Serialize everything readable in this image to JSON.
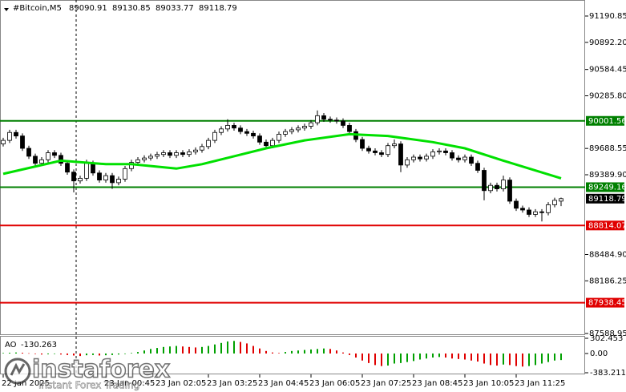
{
  "chart_data": {
    "type": "candlestick",
    "title": "#Bitcoin,M5",
    "bull_color": "#ffffff",
    "bear_color": "#000000",
    "xlim": [
      -0.5,
      90.75
    ],
    "ylim": [
      87570.8,
      91336.4
    ],
    "yticks": [
      91190.85,
      {
        "value": 90892.2,
        "label": "90892.20"
      },
      90584.45,
      {
        "value": 90285.8,
        "label": "90285.80"
      },
      89688.55,
      {
        "value": 89389.9,
        "label": "89389.90"
      },
      {
        "value": 88484.9,
        "label": "88484.90"
      },
      88186.25,
      87588.95
    ],
    "xticks": [
      {
        "value": 0,
        "label": "22 Jan 2025"
      },
      {
        "value": 16,
        "label": "23 Jan 00:45"
      },
      {
        "value": 24,
        "label": "23 Jan 02:05"
      },
      {
        "value": 32,
        "label": "23 Jan 03:25"
      },
      {
        "value": 40,
        "label": "23 Jan 04:45"
      },
      {
        "value": 48,
        "label": "23 Jan 06:05"
      },
      {
        "value": 56,
        "label": "23 Jan 07:25"
      },
      {
        "value": 64,
        "label": "23 Jan 08:45"
      },
      {
        "value": 72,
        "label": "23 Jan 10:05"
      },
      {
        "value": 80,
        "label": "23 Jan 11:25"
      }
    ],
    "open": [
      89740,
      89780,
      89870,
      89830,
      89690,
      89600,
      89520,
      89560,
      89640,
      89610,
      89520,
      89420,
      89320,
      89350,
      89520,
      89410,
      89330,
      89380,
      89300,
      89340,
      89460,
      89530,
      89560,
      89580,
      89600,
      89620,
      89640,
      89610,
      89640,
      89620,
      89650,
      89670,
      89710,
      89780,
      89870,
      89910,
      89950,
      89920,
      89880,
      89860,
      89830,
      89760,
      89720,
      89780,
      89850,
      89880,
      89900,
      89920,
      89940,
      89980,
      90060,
      90020,
      90010,
      90000,
      89950,
      89880,
      89790,
      89690,
      89660,
      89640,
      89620,
      89720,
      89740,
      89500,
      89560,
      89590,
      89570,
      89600,
      89650,
      89660,
      89640,
      89580,
      89560,
      89590,
      89520,
      89440,
      89210,
      89270,
      89230,
      89330,
      89090,
      89010,
      88990,
      88940,
      88970,
      88960,
      89050,
      89090.91
    ],
    "high": [
      89810,
      89900,
      89900,
      89860,
      89720,
      89630,
      89590,
      89670,
      89670,
      89640,
      89550,
      89450,
      89380,
      89560,
      89550,
      89440,
      89410,
      89410,
      89370,
      89490,
      89560,
      89590,
      89610,
      89630,
      89650,
      89670,
      89670,
      89670,
      89670,
      89680,
      89700,
      89740,
      89810,
      89900,
      89940,
      90020,
      89980,
      89950,
      89910,
      89890,
      89860,
      89790,
      89810,
      89880,
      89910,
      89930,
      89950,
      89970,
      90010,
      90120,
      90090,
      90050,
      90040,
      90030,
      89980,
      89910,
      89820,
      89720,
      89690,
      89670,
      89750,
      89790,
      89770,
      89590,
      89620,
      89620,
      89630,
      89680,
      89690,
      89690,
      89670,
      89610,
      89620,
      89620,
      89550,
      89470,
      89300,
      89300,
      89380,
      89360,
      89120,
      89040,
      89020,
      89000,
      89000,
      89080,
      89130,
      89130.85
    ],
    "low": [
      89710,
      89750,
      89800,
      89660,
      89570,
      89490,
      89490,
      89530,
      89580,
      89490,
      89390,
      89190,
      89290,
      89320,
      89380,
      89300,
      89300,
      89230,
      89270,
      89310,
      89430,
      89500,
      89530,
      89550,
      89570,
      89590,
      89580,
      89580,
      89590,
      89590,
      89620,
      89640,
      89680,
      89750,
      89840,
      89880,
      89890,
      89850,
      89830,
      89800,
      89730,
      89690,
      89690,
      89750,
      89820,
      89850,
      89870,
      89890,
      89910,
      89950,
      89990,
      89980,
      89970,
      89920,
      89850,
      89760,
      89660,
      89630,
      89610,
      89590,
      89590,
      89690,
      89420,
      89470,
      89530,
      89540,
      89540,
      89570,
      89620,
      89610,
      89550,
      89530,
      89530,
      89490,
      89410,
      89100,
      89180,
      89200,
      89200,
      89060,
      88980,
      88960,
      88910,
      88910,
      88860,
      88930,
      89020,
      89033.77
    ],
    "close": [
      89780,
      89870,
      89830,
      89690,
      89600,
      89520,
      89560,
      89640,
      89610,
      89520,
      89420,
      89320,
      89350,
      89520,
      89410,
      89330,
      89380,
      89300,
      89340,
      89460,
      89530,
      89560,
      89580,
      89600,
      89620,
      89640,
      89610,
      89640,
      89620,
      89650,
      89670,
      89710,
      89780,
      89870,
      89910,
      89950,
      89920,
      89880,
      89860,
      89830,
      89760,
      89720,
      89780,
      89850,
      89880,
      89900,
      89920,
      89940,
      89980,
      90060,
      90020,
      90010,
      90000,
      89950,
      89880,
      89790,
      89690,
      89660,
      89640,
      89620,
      89720,
      89740,
      89500,
      89560,
      89590,
      89570,
      89600,
      89650,
      89660,
      89640,
      89580,
      89560,
      89590,
      89520,
      89440,
      89210,
      89270,
      89230,
      89330,
      89090,
      89010,
      88990,
      88940,
      88970,
      88960,
      89050,
      89100,
      89118.79
    ],
    "moving_average": {
      "color": "#00e000",
      "x": [
        0,
        9,
        16,
        20,
        27,
        31,
        36,
        41,
        47,
        54,
        60,
        67,
        72,
        78,
        87
      ],
      "values": [
        89400,
        89550,
        89510,
        89510,
        89460,
        89510,
        89600,
        89690,
        89780,
        89850,
        89830,
        89760,
        89690,
        89550,
        89350
      ]
    },
    "levels": [
      {
        "value": 90001.56,
        "color": "#008000"
      },
      {
        "value": 89249.16,
        "color": "#008000"
      },
      {
        "value": 88814.07,
        "color": "#e00000"
      },
      {
        "value": 87938.45,
        "color": "#e00000"
      }
    ],
    "oscillator": {
      "title": "AO",
      "up_color": "#00a000",
      "down_color": "#e00000",
      "ylim": [
        -383.211,
        302.453
      ],
      "yticks": [
        302.453,
        {
          "value": 0,
          "label": "0.00"
        },
        -383.211
      ],
      "values": [
        10,
        15,
        20,
        15,
        5,
        -10,
        -20,
        -15,
        -10,
        -20,
        -30,
        -40,
        -50,
        -35,
        -30,
        -40,
        -35,
        -30,
        -20,
        -10,
        10,
        30,
        60,
        90,
        110,
        130,
        140,
        150,
        140,
        130,
        120,
        130,
        150,
        180,
        210,
        240,
        250,
        230,
        200,
        150,
        100,
        50,
        20,
        10,
        30,
        50,
        60,
        70,
        80,
        90,
        100,
        90,
        60,
        20,
        -30,
        -80,
        -140,
        -190,
        -230,
        -250,
        -240,
        -200,
        -190,
        -170,
        -150,
        -120,
        -100,
        -80,
        -70,
        -80,
        -100,
        -110,
        -120,
        -140,
        -160,
        -200,
        -230,
        -240,
        -220,
        -230,
        -250,
        -260,
        -250,
        -230,
        -200,
        -170,
        -140,
        -130.263
      ]
    }
  },
  "watermark": {
    "brand": "instaforex",
    "tagline": "Instant Forex Trading"
  }
}
